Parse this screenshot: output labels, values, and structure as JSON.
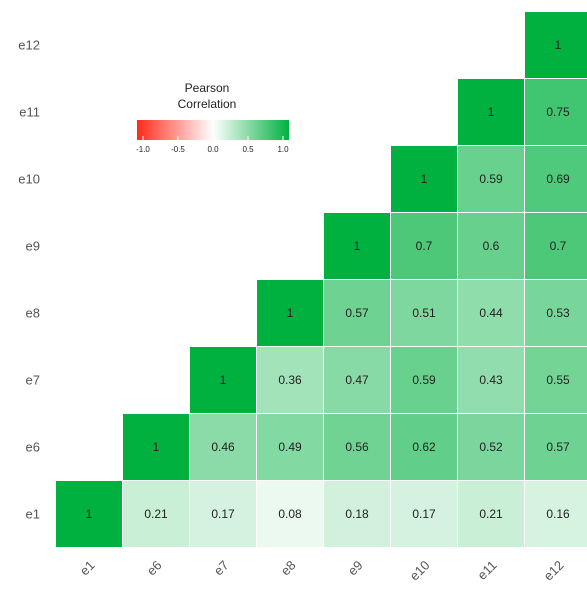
{
  "chart_data": {
    "type": "heatmap",
    "title": "",
    "xlabel": "",
    "ylabel": "",
    "variables": [
      "e1",
      "e6",
      "e7",
      "e8",
      "e9",
      "e10",
      "e11",
      "e12"
    ],
    "lower_triangle_hidden": true,
    "matrix": [
      [
        1,
        0.21,
        0.17,
        0.08,
        0.18,
        0.17,
        0.21,
        0.16
      ],
      [
        null,
        1,
        0.46,
        0.49,
        0.56,
        0.62,
        0.52,
        0.57
      ],
      [
        null,
        null,
        1,
        0.36,
        0.47,
        0.59,
        0.43,
        0.55
      ],
      [
        null,
        null,
        null,
        1,
        0.57,
        0.51,
        0.44,
        0.53
      ],
      [
        null,
        null,
        null,
        null,
        1,
        0.7,
        0.6,
        0.7
      ],
      [
        null,
        null,
        null,
        null,
        null,
        1,
        0.59,
        0.69
      ],
      [
        null,
        null,
        null,
        null,
        null,
        null,
        1,
        0.75
      ],
      [
        null,
        null,
        null,
        null,
        null,
        null,
        null,
        1
      ]
    ],
    "color_scale": {
      "low": "#ff2a1a",
      "mid": "#ffffff",
      "high": "#00b140",
      "domain": [
        -1,
        1
      ]
    },
    "legend": {
      "title_lines": [
        "Pearson",
        "Correlation"
      ],
      "ticks": [
        "-1.0",
        "-0.5",
        "0.0",
        "0.5",
        "1.0"
      ],
      "placement": "top-left"
    },
    "x_tick_labels": [
      "e1",
      "e6",
      "e7",
      "e8",
      "e9",
      "e10",
      "e11",
      "e12"
    ],
    "y_tick_labels": [
      "e1",
      "e6",
      "e7",
      "e8",
      "e9",
      "e10",
      "e11",
      "e12"
    ]
  }
}
